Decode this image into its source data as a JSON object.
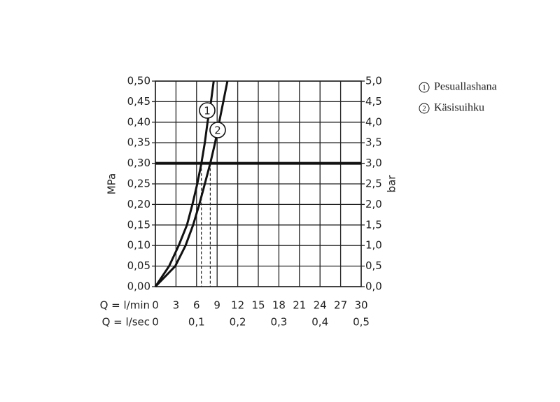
{
  "chart_data": {
    "type": "line",
    "y_label": "MPa",
    "y2_label": "bar",
    "x_label": "Q = l/min",
    "x2_label": "Q = l/sec",
    "xlim": [
      0,
      30
    ],
    "xticks": [
      0,
      3,
      6,
      9,
      12,
      15,
      18,
      21,
      24,
      27,
      30
    ],
    "x2lim": [
      0,
      0.5
    ],
    "x2ticks": [
      0,
      {
        "value": 0.1,
        "label": "0,1"
      },
      {
        "value": 0.2,
        "label": "0,2"
      },
      {
        "value": 0.3,
        "label": "0,3"
      },
      {
        "value": 0.4,
        "label": "0,4"
      },
      {
        "value": 0.5,
        "label": "0,5"
      }
    ],
    "ylim": [
      0,
      0.5
    ],
    "yticks": [
      {
        "value": 0,
        "label": "0,00"
      },
      {
        "value": 0.05,
        "label": "0,05"
      },
      {
        "value": 0.1,
        "label": "0,10"
      },
      {
        "value": 0.15,
        "label": "0,15"
      },
      {
        "value": 0.2,
        "label": "0,20"
      },
      {
        "value": 0.25,
        "label": "0,25"
      },
      {
        "value": 0.3,
        "label": "0,30"
      },
      {
        "value": 0.35,
        "label": "0,35"
      },
      {
        "value": 0.4,
        "label": "0,40"
      },
      {
        "value": 0.45,
        "label": "0,45"
      },
      {
        "value": 0.5,
        "label": "0,50"
      }
    ],
    "y2lim": [
      0,
      5
    ],
    "y2ticks": [
      {
        "value": 0,
        "label": "0,0"
      },
      {
        "value": 0.5,
        "label": "0,5"
      },
      {
        "value": 1,
        "label": "1,0"
      },
      {
        "value": 1.5,
        "label": "1,5"
      },
      {
        "value": 2,
        "label": "2,0"
      },
      {
        "value": 2.5,
        "label": "2,5"
      },
      {
        "value": 3,
        "label": "3,0"
      },
      {
        "value": 3.5,
        "label": "3,5"
      },
      {
        "value": 4,
        "label": "4,0"
      },
      {
        "value": 4.5,
        "label": "4,5"
      },
      {
        "value": 5,
        "label": "5,0"
      }
    ],
    "grid": true,
    "reference_line": 0.3,
    "series": [
      {
        "name": "Pesuallashana",
        "marker": "1",
        "color": "#111",
        "x": [
          0,
          2.0,
          3.4,
          4.6,
          5.4,
          6.1,
          6.7,
          7.2,
          7.6,
          8.1,
          8.5
        ],
        "values": [
          0,
          0.05,
          0.1,
          0.15,
          0.2,
          0.25,
          0.3,
          0.35,
          0.4,
          0.45,
          0.5
        ]
      },
      {
        "name": "Käsisuihku",
        "marker": "2",
        "color": "#111",
        "x": [
          0,
          2.9,
          4.4,
          5.5,
          6.4,
          7.2,
          8.0,
          8.7,
          9.3,
          9.9,
          10.5
        ],
        "values": [
          0,
          0.05,
          0.1,
          0.15,
          0.2,
          0.25,
          0.3,
          0.35,
          0.4,
          0.45,
          0.5
        ]
      }
    ]
  }
}
